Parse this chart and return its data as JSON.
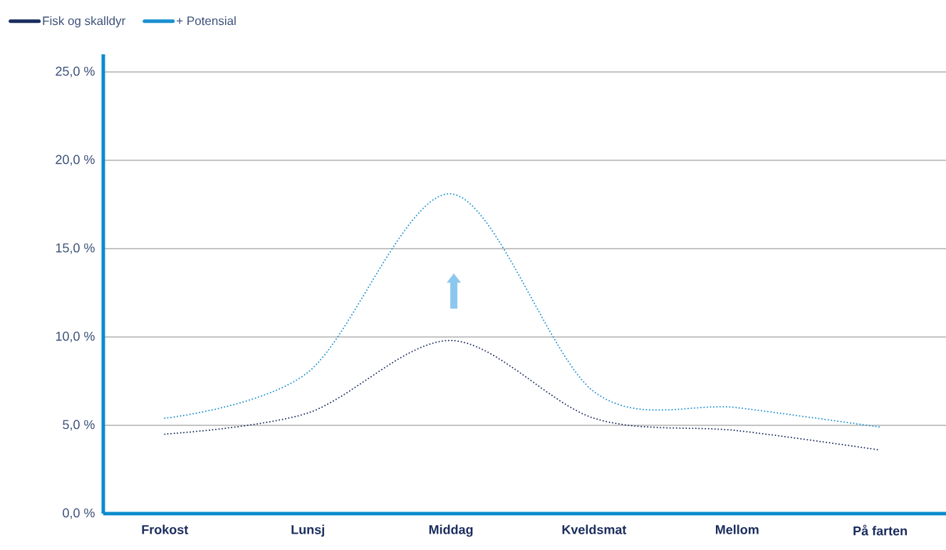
{
  "chart_data": {
    "type": "line",
    "categories": [
      "Frokost",
      "Lunsj",
      "Middag",
      "Kveldsmat",
      "Mellom",
      "På farten"
    ],
    "series": [
      {
        "name": "Fisk og skalldyr",
        "color": "#1b2d5e",
        "values": [
          4.5,
          5.7,
          9.8,
          5.4,
          4.7,
          3.6
        ]
      },
      {
        "name": "+ Potensial",
        "color": "#1a8fd0",
        "values": [
          5.4,
          8.0,
          18.1,
          6.9,
          6.0,
          4.9
        ]
      }
    ],
    "ylim": [
      0,
      26
    ],
    "yticks": [
      {
        "value": 0,
        "label": "0,0 %"
      },
      {
        "value": 5,
        "label": "5,0 %"
      },
      {
        "value": 10,
        "label": "10,0 %"
      },
      {
        "value": 15,
        "label": "15,0 %"
      },
      {
        "value": 20,
        "label": "20,0 %"
      },
      {
        "value": 25,
        "label": "25,0 %"
      }
    ],
    "grid": "y",
    "legend": "top left",
    "line_style": "dotted"
  }
}
